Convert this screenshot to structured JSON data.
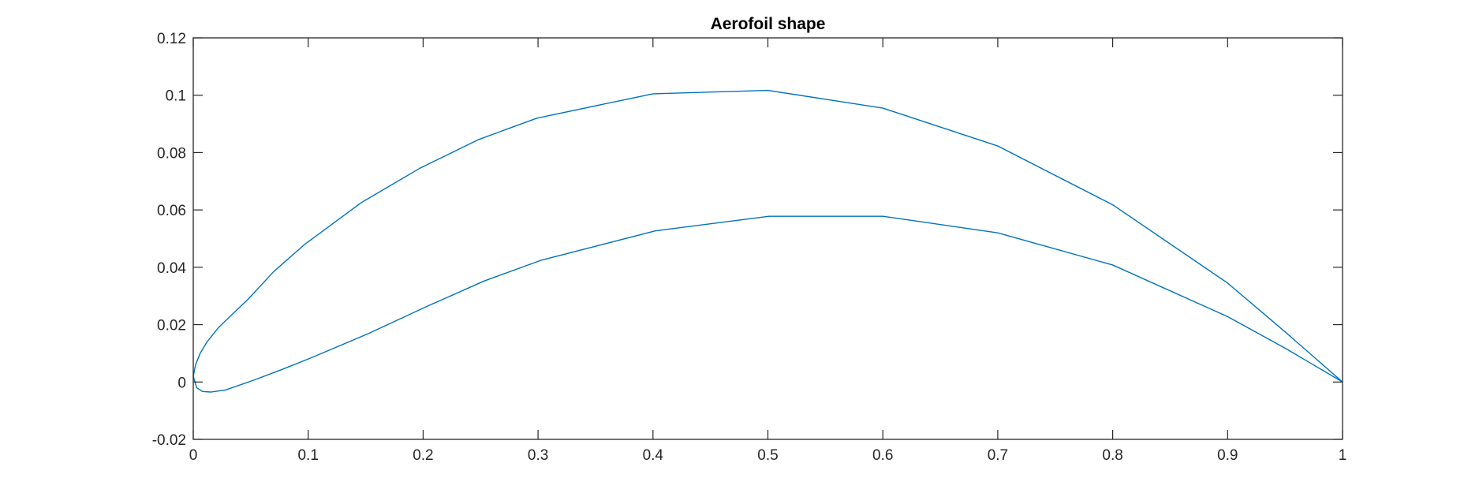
{
  "chart_data": {
    "type": "line",
    "title": "Aerofoil shape",
    "xlabel": "",
    "ylabel": "",
    "xlim": [
      0,
      1
    ],
    "ylim": [
      -0.02,
      0.12
    ],
    "xticks": [
      0,
      0.1,
      0.2,
      0.3,
      0.4,
      0.5,
      0.6,
      0.7,
      0.8,
      0.9,
      1
    ],
    "xtick_labels": [
      "0",
      "0.1",
      "0.2",
      "0.3",
      "0.4",
      "0.5",
      "0.6",
      "0.7",
      "0.8",
      "0.9",
      "1"
    ],
    "yticks": [
      -0.02,
      0,
      0.02,
      0.04,
      0.06,
      0.08,
      0.1,
      0.12
    ],
    "ytick_labels": [
      "-0.02",
      "0",
      "0.02",
      "0.04",
      "0.06",
      "0.08",
      "0.1",
      "0.12"
    ],
    "grid": false,
    "box": true,
    "line_color": "#0072BD",
    "axis_color": "#262626",
    "series": [
      {
        "x": [
          0,
          0.002,
          0.006,
          0.012,
          0.022,
          0.035,
          0.048,
          0.07,
          0.097,
          0.146,
          0.197,
          0.248,
          0.299,
          0.4,
          0.5,
          0.6,
          0.7,
          0.8,
          0.9,
          0.95,
          1
        ],
        "y": [
          0.002,
          0.006,
          0.01,
          0.014,
          0.019,
          0.024,
          0.029,
          0.0385,
          0.048,
          0.0625,
          0.0745,
          0.0845,
          0.092,
          0.1005,
          0.1017,
          0.0955,
          0.0823,
          0.0618,
          0.0345,
          0.0175,
          0
        ]
      },
      {
        "x": [
          0,
          0.003,
          0.008,
          0.015,
          0.028,
          0.053,
          0.078,
          0.103,
          0.153,
          0.203,
          0.253,
          0.303,
          0.402,
          0.501,
          0.6,
          0.7,
          0.8,
          0.9,
          0.95,
          1
        ],
        "y": [
          0.002,
          -0.002,
          -0.0033,
          -0.0035,
          -0.0028,
          0.0007,
          0.0045,
          0.0085,
          0.017,
          0.0263,
          0.0352,
          0.0425,
          0.0527,
          0.0578,
          0.0578,
          0.052,
          0.0408,
          0.0228,
          0.0118,
          0
        ]
      }
    ]
  }
}
